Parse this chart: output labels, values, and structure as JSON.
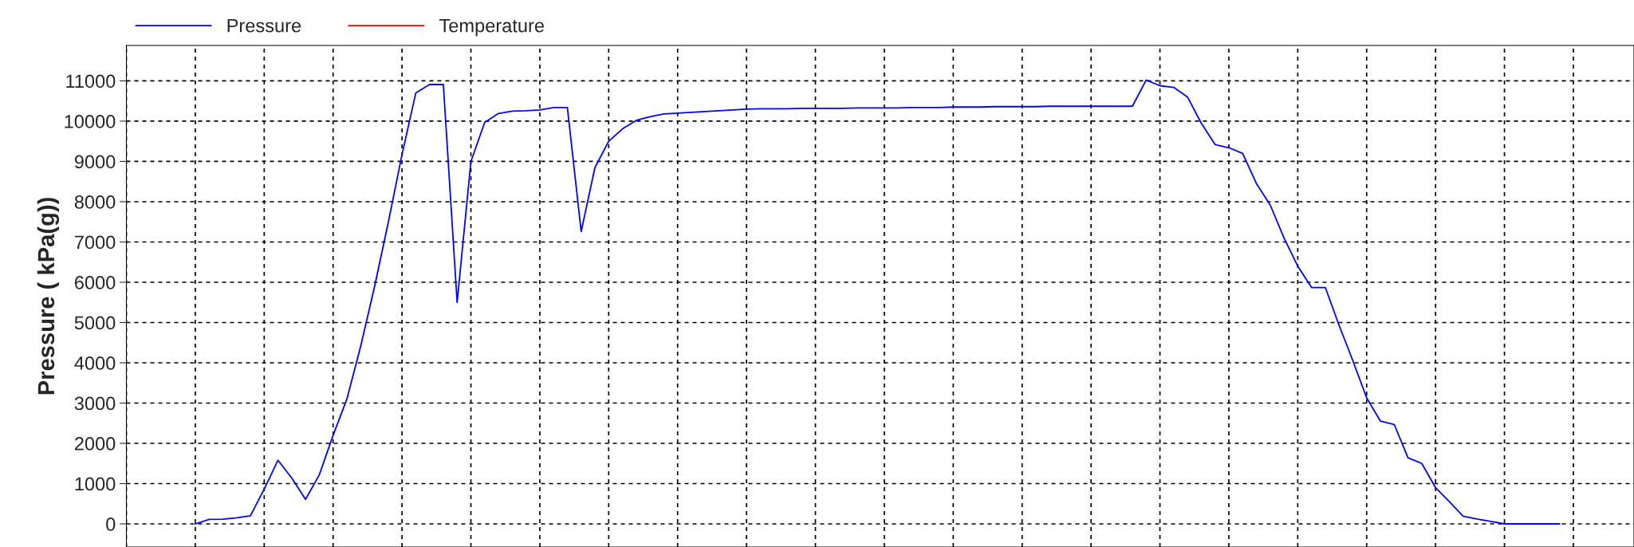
{
  "chart_data": {
    "type": "line",
    "ylabel": "Pressure ( kPa(g))",
    "grid": true,
    "legend": "top",
    "marker": "none",
    "line_style": "solid",
    "ylim": [
      -574,
      11880
    ],
    "yticks": [
      0,
      1000,
      2000,
      3000,
      4000,
      5000,
      6000,
      7000,
      8000,
      9000,
      10000,
      11000
    ],
    "categories": [
      null,
      null,
      null,
      null,
      null,
      null,
      null,
      null,
      null,
      null,
      null,
      null,
      null,
      null,
      null,
      null,
      null,
      null,
      null,
      null,
      null,
      null,
      null,
      null,
      null,
      null,
      null,
      null,
      null,
      null,
      null,
      null,
      null,
      null,
      null,
      null,
      null,
      null,
      null,
      null,
      null,
      null,
      null,
      null,
      null,
      null,
      null,
      null,
      null,
      null,
      null,
      null,
      null,
      null,
      null,
      null,
      null,
      null,
      null,
      null,
      null,
      null,
      null,
      null,
      null,
      null,
      null,
      null,
      null,
      null,
      null,
      null,
      null,
      null,
      null,
      null,
      null,
      null,
      null,
      null,
      null,
      null,
      null,
      null,
      null,
      null,
      null,
      null,
      null,
      null,
      null,
      null,
      null,
      null,
      null,
      null,
      null,
      null,
      null,
      null
    ],
    "series": [
      {
        "name": "Pressure",
        "color": "#0000ff",
        "values": [
          0,
          110,
          115,
          150,
          200,
          865,
          1580,
          1140,
          610,
          1220,
          2200,
          3100,
          4410,
          5880,
          7480,
          9170,
          10700,
          10910,
          10910,
          5500,
          9000,
          9970,
          10190,
          10250,
          10260,
          10280,
          10340,
          10340,
          7260,
          8850,
          9500,
          9810,
          10020,
          10110,
          10180,
          10200,
          10220,
          10240,
          10260,
          10280,
          10300,
          10310,
          10310,
          10310,
          10320,
          10320,
          10320,
          10320,
          10330,
          10330,
          10330,
          10330,
          10340,
          10340,
          10340,
          10350,
          10350,
          10350,
          10360,
          10360,
          10360,
          10360,
          10370,
          10370,
          10370,
          10370,
          10370,
          10370,
          10370,
          11020,
          10880,
          10840,
          10600,
          9950,
          9420,
          9340,
          9200,
          8450,
          7920,
          7100,
          6400,
          5870,
          5870,
          4930,
          4050,
          3130,
          2550,
          2470,
          1640,
          1500,
          900,
          550,
          190,
          120,
          60,
          0,
          0,
          0,
          0,
          0
        ]
      },
      {
        "name": "Temperature",
        "color": "#ff0000",
        "values": [
          null,
          null,
          null,
          null,
          null,
          null,
          null,
          null,
          null,
          null,
          null,
          null,
          null,
          null,
          null,
          null,
          null,
          null,
          null,
          null,
          null,
          null,
          null,
          null,
          null,
          null,
          null,
          null,
          null,
          null,
          null,
          null,
          null,
          null,
          null,
          null,
          null,
          null,
          null,
          null,
          null,
          null,
          null,
          null,
          null,
          null,
          null,
          null,
          null,
          null,
          null,
          null,
          null,
          null,
          null,
          null,
          null,
          null,
          null,
          null,
          null,
          null,
          null,
          null,
          null,
          null,
          null,
          null,
          null,
          null,
          null,
          null,
          null,
          null,
          null,
          null,
          null,
          null,
          null,
          null,
          null,
          null,
          null,
          null,
          null,
          null,
          null,
          null,
          null,
          null,
          null,
          null,
          null,
          null,
          null,
          null,
          null,
          null,
          null,
          null
        ]
      }
    ]
  }
}
